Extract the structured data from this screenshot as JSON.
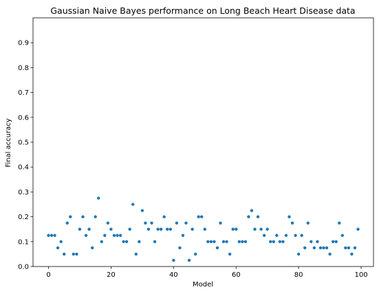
{
  "chart_data": {
    "type": "scatter",
    "title": "Gaussian Naive Bayes performance on Long Beach Heart Disease data",
    "xlabel": "Model",
    "ylabel": "Final accuracy",
    "xlim": [
      -4.95,
      103.95
    ],
    "ylim": [
      0,
      1.0
    ],
    "xticks": [
      0,
      20,
      40,
      60,
      80,
      100
    ],
    "yticks": [
      0.0,
      0.1,
      0.2,
      0.3,
      0.4,
      0.5,
      0.6,
      0.7,
      0.8,
      0.9
    ],
    "ytick_labels": [
      "0.0",
      "0.1",
      "0.2",
      "0.3",
      "0.4",
      "0.5",
      "0.6",
      "0.7",
      "0.8",
      "0.9"
    ],
    "grid": false,
    "color": "#1f77b4",
    "x": [
      0,
      1,
      2,
      3,
      4,
      5,
      6,
      7,
      8,
      9,
      10,
      11,
      12,
      13,
      14,
      15,
      16,
      17,
      18,
      19,
      20,
      21,
      22,
      23,
      24,
      25,
      26,
      27,
      28,
      29,
      30,
      31,
      32,
      33,
      34,
      35,
      36,
      37,
      38,
      39,
      40,
      41,
      42,
      43,
      44,
      45,
      46,
      47,
      48,
      49,
      50,
      51,
      52,
      53,
      54,
      55,
      56,
      57,
      58,
      59,
      60,
      61,
      62,
      63,
      64,
      65,
      66,
      67,
      68,
      69,
      70,
      71,
      72,
      73,
      74,
      75,
      76,
      77,
      78,
      79,
      80,
      81,
      82,
      83,
      84,
      85,
      86,
      87,
      88,
      89,
      90,
      91,
      92,
      93,
      94,
      95,
      96,
      97,
      98,
      99
    ],
    "y": [
      0.125,
      0.125,
      0.125,
      0.075,
      0.1,
      0.05,
      0.175,
      0.2,
      0.05,
      0.05,
      0.15,
      0.2,
      0.125,
      0.15,
      0.075,
      0.2,
      0.275,
      0.1,
      0.125,
      0.175,
      0.15,
      0.125,
      0.125,
      0.125,
      0.1,
      0.1,
      0.15,
      0.25,
      0.05,
      0.1,
      0.225,
      0.175,
      0.15,
      0.175,
      0.1,
      0.15,
      0.15,
      0.2,
      0.15,
      0.15,
      0.025,
      0.175,
      0.075,
      0.125,
      0.175,
      0.025,
      0.15,
      0.05,
      0.2,
      0.2,
      0.15,
      0.1,
      0.1,
      0.1,
      0.075,
      0.175,
      0.1,
      0.1,
      0.05,
      0.15,
      0.15,
      0.1,
      0.1,
      0.1,
      0.2,
      0.225,
      0.15,
      0.2,
      0.15,
      0.125,
      0.15,
      0.1,
      0.1,
      0.125,
      0.1,
      0.1,
      0.125,
      0.2,
      0.175,
      0.125,
      0.05,
      0.125,
      0.075,
      0.175,
      0.1,
      0.075,
      0.1,
      0.075,
      0.075,
      0.075,
      0.05,
      0.1,
      0.1,
      0.175,
      0.125,
      0.075,
      0.075,
      0.05,
      0.075,
      0.15
    ]
  }
}
